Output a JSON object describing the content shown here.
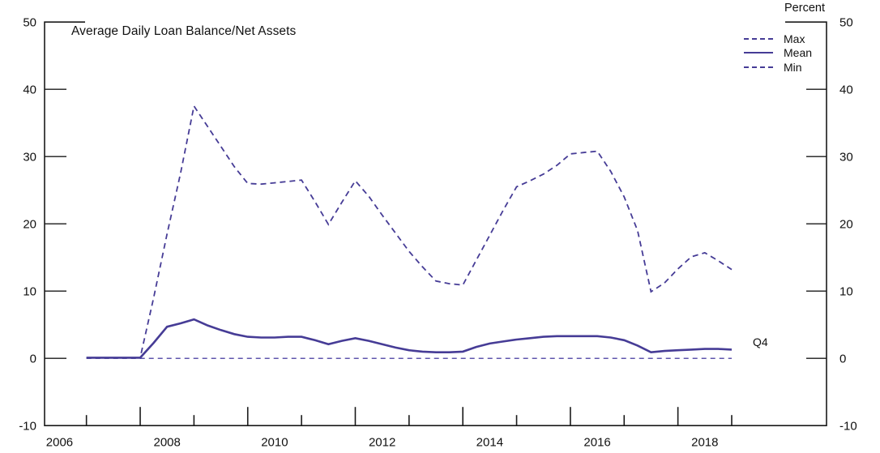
{
  "chart_data": {
    "type": "line",
    "title": "Average Daily Loan Balance/Net Assets",
    "unit_label": "Percent",
    "end_annotation": "Q4",
    "legend": [
      {
        "label": "Max",
        "style": "dashed"
      },
      {
        "label": "Mean",
        "style": "solid"
      },
      {
        "label": "Min",
        "style": "dashed"
      }
    ],
    "colors": {
      "line": "#463c96",
      "min_line": "#5f56ad",
      "axis": "#1a1a1a"
    },
    "y_axis": {
      "min": -10,
      "max": 50,
      "tick_labels": [
        -10,
        0,
        10,
        20,
        30,
        40,
        50
      ],
      "inner_tick_values": [
        0,
        10,
        20,
        30,
        40
      ],
      "grid": false
    },
    "x_axis": {
      "tick_years": [
        2007,
        2008,
        2009,
        2010,
        2011,
        2012,
        2013,
        2014,
        2015,
        2016,
        2017,
        2018,
        2019
      ],
      "label_years": [
        2006,
        2008,
        2010,
        2012,
        2014,
        2016,
        2018
      ]
    },
    "quarters": [
      "2006 Q4",
      "2007 Q1",
      "2007 Q2",
      "2007 Q3",
      "2007 Q4",
      "2008 Q1",
      "2008 Q2",
      "2008 Q3",
      "2008 Q4",
      "2009 Q1",
      "2009 Q2",
      "2009 Q3",
      "2009 Q4",
      "2010 Q1",
      "2010 Q2",
      "2010 Q3",
      "2010 Q4",
      "2011 Q1",
      "2011 Q2",
      "2011 Q3",
      "2011 Q4",
      "2012 Q1",
      "2012 Q2",
      "2012 Q3",
      "2012 Q4",
      "2013 Q1",
      "2013 Q2",
      "2013 Q3",
      "2013 Q4",
      "2014 Q1",
      "2014 Q2",
      "2014 Q3",
      "2014 Q4",
      "2015 Q1",
      "2015 Q2",
      "2015 Q3",
      "2015 Q4",
      "2016 Q1",
      "2016 Q2",
      "2016 Q3",
      "2016 Q4",
      "2017 Q1",
      "2017 Q2",
      "2017 Q3",
      "2017 Q4",
      "2018 Q1",
      "2018 Q2",
      "2018 Q3",
      "2018 Q4"
    ],
    "series": [
      {
        "name": "Max",
        "line": "dashed",
        "values": [
          0.1,
          0.1,
          0.1,
          0.1,
          0.1,
          9.0,
          18.5,
          27.5,
          37.5,
          34.5,
          31.5,
          28.5,
          26.0,
          25.9,
          26.1,
          26.3,
          26.5,
          23.3,
          19.9,
          23.2,
          26.4,
          24.1,
          21.3,
          18.6,
          15.9,
          13.6,
          11.5,
          11.1,
          10.9,
          14.6,
          18.3,
          22.0,
          25.5,
          26.4,
          27.4,
          28.7,
          30.4,
          30.6,
          30.8,
          27.8,
          24.0,
          19.0,
          9.9,
          11.2,
          13.3,
          15.1,
          15.7,
          14.5,
          13.2
        ]
      },
      {
        "name": "Mean",
        "line": "solid",
        "values": [
          0.1,
          0.1,
          0.1,
          0.1,
          0.1,
          2.3,
          4.7,
          5.2,
          5.8,
          4.9,
          4.2,
          3.6,
          3.2,
          3.1,
          3.1,
          3.2,
          3.2,
          2.7,
          2.1,
          2.6,
          3.0,
          2.6,
          2.1,
          1.6,
          1.2,
          1.0,
          0.9,
          0.9,
          1.0,
          1.7,
          2.2,
          2.5,
          2.8,
          3.0,
          3.2,
          3.3,
          3.3,
          3.3,
          3.3,
          3.1,
          2.7,
          1.9,
          0.9,
          1.1,
          1.2,
          1.3,
          1.4,
          1.4,
          1.3
        ]
      },
      {
        "name": "Min",
        "line": "dashed",
        "values": [
          0.0,
          0.0,
          0.0,
          0.0,
          0.0,
          0.0,
          0.0,
          0.0,
          0.0,
          0.0,
          0.0,
          0.0,
          0.0,
          0.0,
          0.0,
          0.0,
          0.0,
          0.0,
          0.0,
          0.0,
          0.0,
          0.0,
          0.0,
          0.0,
          0.0,
          0.0,
          0.0,
          0.0,
          0.0,
          0.0,
          0.0,
          0.0,
          0.0,
          0.0,
          0.0,
          0.0,
          0.0,
          0.0,
          0.0,
          0.0,
          0.0,
          0.0,
          0.0,
          0.0,
          0.0,
          0.0,
          0.0,
          0.0,
          0.0
        ]
      }
    ]
  }
}
